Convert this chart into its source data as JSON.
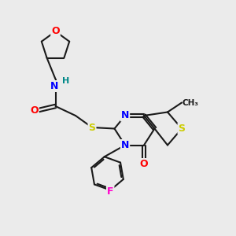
{
  "background_color": "#ebebeb",
  "atom_colors": {
    "C": "#1a1a1a",
    "N": "#0000ff",
    "O": "#ff0000",
    "S": "#cccc00",
    "F": "#ff00cc",
    "H": "#008888"
  },
  "bond_color": "#1a1a1a",
  "bond_width": 1.5,
  "figsize": [
    3.0,
    3.0
  ],
  "dpi": 100
}
